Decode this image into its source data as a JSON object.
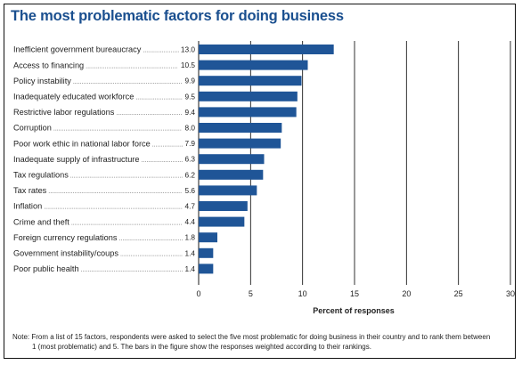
{
  "chart_data": {
    "type": "bar",
    "orientation": "horizontal",
    "title": "The most problematic factors for doing business",
    "xlabel": "Percent of responses",
    "ylabel": "",
    "xlim": [
      0,
      30
    ],
    "xticks": [
      0,
      5,
      10,
      15,
      20,
      25,
      30
    ],
    "grid": "vertical gridlines at each x tick",
    "bar_color": "#1f5597",
    "categories": [
      "Inefficient government bureaucracy",
      "Access to financing",
      "Policy instability",
      "Inadequately educated workforce",
      "Restrictive labor regulations",
      "Corruption",
      "Poor work ethic in national labor force",
      "Inadequate supply of infrastructure",
      "Tax regulations",
      "Tax rates",
      "Inflation",
      "Crime and theft",
      "Foreign currency regulations",
      "Government instability/coups",
      "Poor public health"
    ],
    "values": [
      13.0,
      10.5,
      9.9,
      9.5,
      9.4,
      8.0,
      7.9,
      6.3,
      6.2,
      5.6,
      4.7,
      4.4,
      1.8,
      1.4,
      1.4
    ],
    "value_labels": [
      "13.0",
      "10.5",
      "9.9",
      "9.5",
      "9.4",
      "8.0",
      "7.9",
      "6.3",
      "6.2",
      "5.6",
      "4.7",
      "4.4",
      "1.8",
      "1.4",
      "1.4"
    ]
  },
  "note": {
    "line1": "Note: From a list of 15 factors, respondents were asked to select the five most problematic for doing business in their country and to rank them between",
    "line2": "1 (most problematic) and 5. The bars in the figure show the responses weighted according to their rankings."
  },
  "colors": {
    "title": "#1a4f8f",
    "bar": "#1f5597",
    "grid": "#1a1a1a",
    "frame": "#111111"
  }
}
